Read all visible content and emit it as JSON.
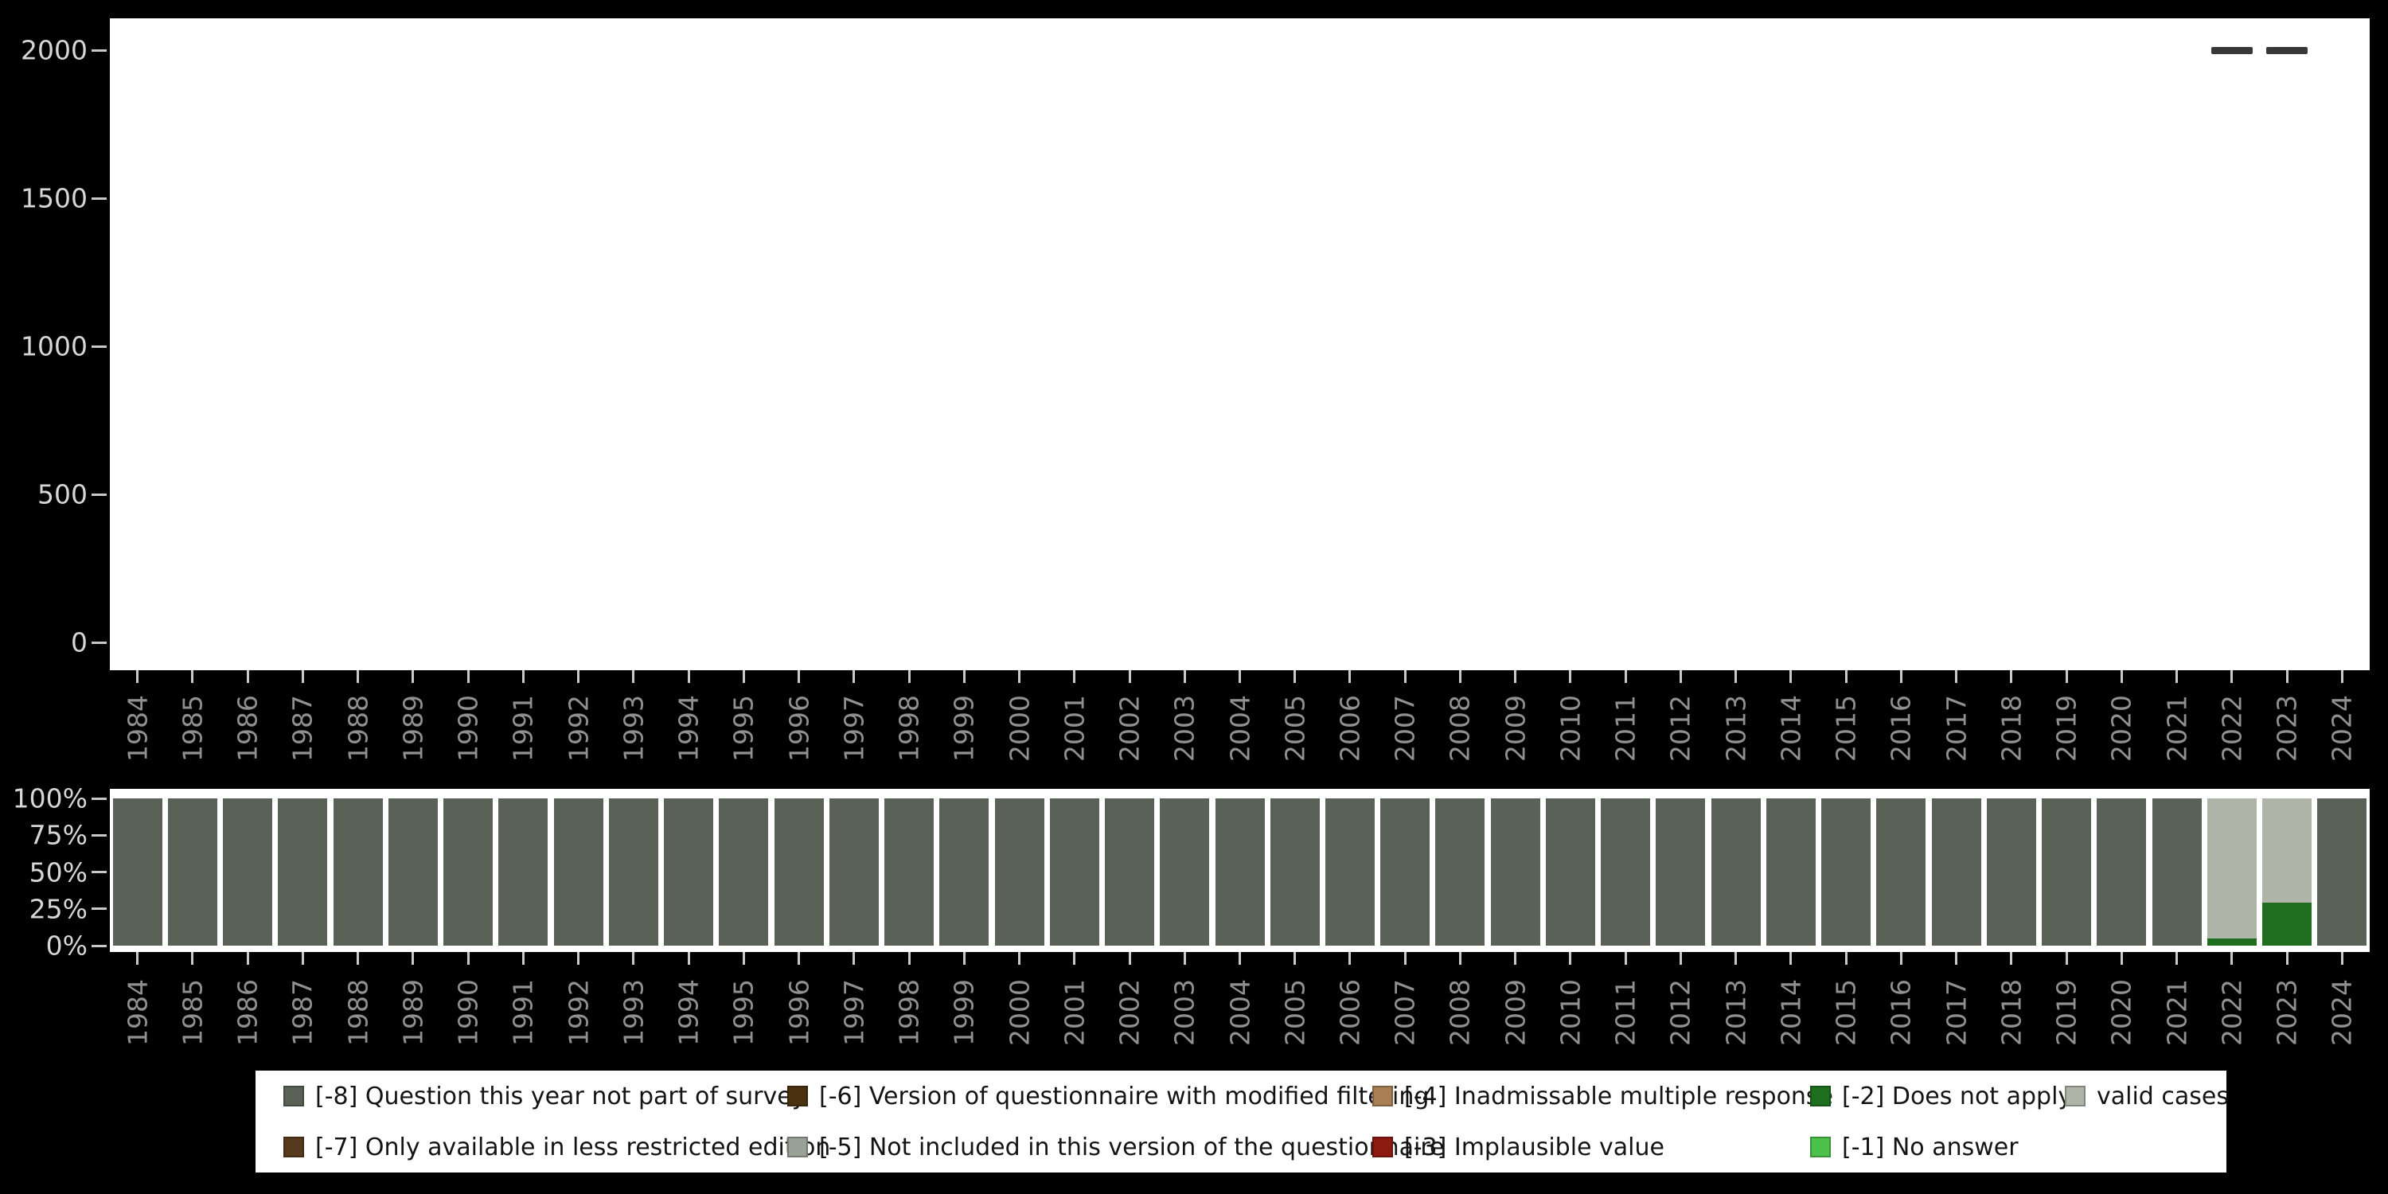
{
  "colors": {
    "background": "#000000",
    "panel": "#ffffff",
    "axis_label": "#d6d6d6",
    "year_label": "#909090",
    "tick": "#c9c9c9",
    "marker_dash": "#383838",
    "legend_bg": "#ffffff",
    "legend_text": "#141414"
  },
  "palette": {
    "-8": "#5a6257",
    "-7": "#573a1d",
    "-6": "#4a3110",
    "-5": "#9aa197",
    "-4": "#a87f55",
    "-3": "#8c1a10",
    "-2": "#1f6e1f",
    "-1": "#4cc24c",
    "valid": "#aeb4a8"
  },
  "top_chart": {
    "y_ticks": [
      {
        "label": "0",
        "value": 0
      },
      {
        "label": "500",
        "value": 500
      },
      {
        "label": "1000",
        "value": 1000
      },
      {
        "label": "1500",
        "value": 1500
      },
      {
        "label": "2000",
        "value": 2000
      }
    ]
  },
  "bottom_chart": {
    "y_ticks": [
      {
        "label": "0%",
        "value": 0
      },
      {
        "label": "25%",
        "value": 25
      },
      {
        "label": "50%",
        "value": 50
      },
      {
        "label": "75%",
        "value": 75
      },
      {
        "label": "100%",
        "value": 100
      }
    ]
  },
  "legend": {
    "rows": [
      [
        {
          "key": "-8",
          "label": "[-8] Question this year not part of survey"
        },
        {
          "key": "-6",
          "label": "[-6] Version of questionnaire with modified filtering"
        },
        {
          "key": "-4",
          "label": "[-4] Inadmissable multiple response"
        },
        {
          "key": "-2",
          "label": "[-2] Does not apply"
        },
        {
          "key": "valid",
          "label": "valid cases"
        }
      ],
      [
        {
          "key": "-7",
          "label": "[-7] Only available in less restricted edition"
        },
        {
          "key": "-5",
          "label": "[-5] Not included in this version of the questionnaire"
        },
        {
          "key": "-3",
          "label": "[-3] Implausible value"
        },
        {
          "key": "-1",
          "label": "[-1] No answer"
        }
      ]
    ]
  },
  "chart_data": [
    {
      "type": "scatter",
      "marker": "dash",
      "points": [
        {
          "x": "2022",
          "y": 2000
        },
        {
          "x": "2023",
          "y": 2000
        }
      ],
      "ylim": [
        0,
        2000
      ],
      "y_ticks": [
        0,
        500,
        1000,
        1500,
        2000
      ],
      "x_range": [
        "1984",
        "2024"
      ],
      "grid": false,
      "legend_position": "none"
    },
    {
      "type": "bar",
      "stacked": true,
      "percent": true,
      "stack_order": "bottom-to-top",
      "categories": [
        "1984",
        "1985",
        "1986",
        "1987",
        "1988",
        "1989",
        "1990",
        "1991",
        "1992",
        "1993",
        "1994",
        "1995",
        "1996",
        "1997",
        "1998",
        "1999",
        "2000",
        "2001",
        "2002",
        "2003",
        "2004",
        "2005",
        "2006",
        "2007",
        "2008",
        "2009",
        "2010",
        "2011",
        "2012",
        "2013",
        "2014",
        "2015",
        "2016",
        "2017",
        "2018",
        "2019",
        "2020",
        "2021",
        "2022",
        "2023",
        "2024"
      ],
      "series": [
        {
          "key": "-2",
          "name": "[-2] Does not apply",
          "values": [
            0,
            0,
            0,
            0,
            0,
            0,
            0,
            0,
            0,
            0,
            0,
            0,
            0,
            0,
            0,
            0,
            0,
            0,
            0,
            0,
            0,
            0,
            0,
            0,
            0,
            0,
            0,
            0,
            0,
            0,
            0,
            0,
            0,
            0,
            0,
            0,
            0,
            0,
            5,
            29,
            0
          ]
        },
        {
          "key": "valid",
          "name": "valid cases",
          "values": [
            0,
            0,
            0,
            0,
            0,
            0,
            0,
            0,
            0,
            0,
            0,
            0,
            0,
            0,
            0,
            0,
            0,
            0,
            0,
            0,
            0,
            0,
            0,
            0,
            0,
            0,
            0,
            0,
            0,
            0,
            0,
            0,
            0,
            0,
            0,
            0,
            0,
            0,
            95,
            71,
            0
          ]
        },
        {
          "key": "-8",
          "name": "[-8] Question this year not part of survey",
          "values": [
            100,
            100,
            100,
            100,
            100,
            100,
            100,
            100,
            100,
            100,
            100,
            100,
            100,
            100,
            100,
            100,
            100,
            100,
            100,
            100,
            100,
            100,
            100,
            100,
            100,
            100,
            100,
            100,
            100,
            100,
            100,
            100,
            100,
            100,
            100,
            100,
            100,
            100,
            0,
            0,
            100
          ]
        }
      ],
      "ylim": [
        0,
        100
      ],
      "ylabel": "",
      "xlabel": "",
      "grid": false,
      "legend_position": "bottom"
    }
  ]
}
